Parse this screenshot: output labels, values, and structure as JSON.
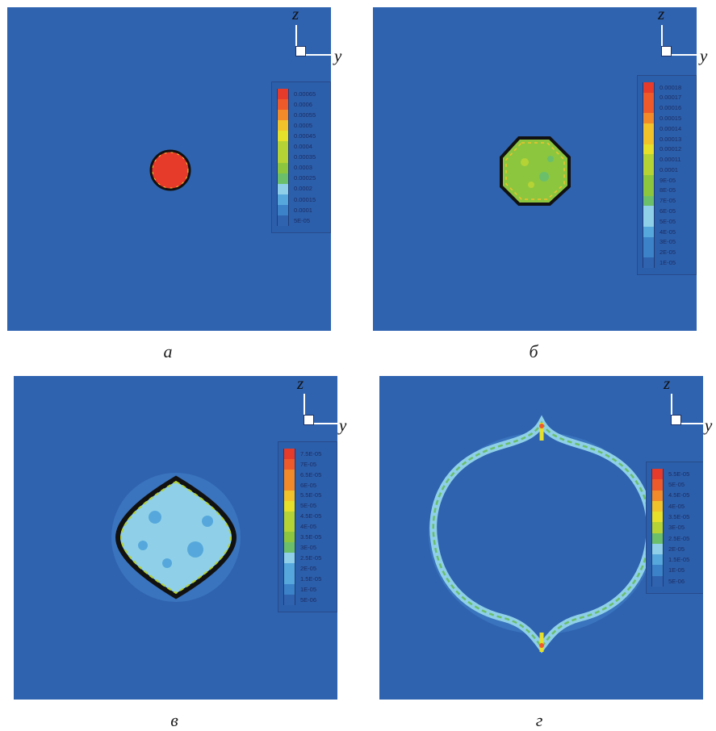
{
  "figure": {
    "panels": [
      {
        "id": "a",
        "caption": "а",
        "axis": {
          "vertical": "z",
          "horizontal": "y"
        },
        "legend": [
          "0.00065",
          "0.0006",
          "0.00055",
          "0.0005",
          "0.00045",
          "0.0004",
          "0.00035",
          "0.0003",
          "0.00025",
          "0.0002",
          "0.00015",
          "0.0001",
          "5E-05"
        ]
      },
      {
        "id": "b",
        "caption": "б",
        "axis": {
          "vertical": "z",
          "horizontal": "y"
        },
        "legend": [
          "0.00018",
          "0.00017",
          "0.00016",
          "0.00015",
          "0.00014",
          "0.00013",
          "0.00012",
          "0.00011",
          "0.0001",
          "9E-05",
          "8E-05",
          "7E-05",
          "6E-05",
          "5E-05",
          "4E-05",
          "3E-05",
          "2E-05",
          "1E-05"
        ]
      },
      {
        "id": "c",
        "caption": "в",
        "axis": {
          "vertical": "z",
          "horizontal": "y"
        },
        "legend": [
          "7.5E-05",
          "7E-05",
          "6.5E-05",
          "6E-05",
          "5.5E-05",
          "5E-05",
          "4.5E-05",
          "4E-05",
          "3.5E-05",
          "3E-05",
          "2.5E-05",
          "2E-05",
          "1.5E-05",
          "1E-05",
          "5E-06"
        ]
      },
      {
        "id": "d",
        "caption": "г",
        "axis": {
          "vertical": "z",
          "horizontal": "y"
        },
        "legend": [
          "5.5E-05",
          "5E-05",
          "4.5E-05",
          "4E-05",
          "3.5E-05",
          "3E-05",
          "2.5E-05",
          "2E-05",
          "1.5E-05",
          "1E-05",
          "5E-06"
        ]
      }
    ],
    "colors": {
      "background": "#2f63b0",
      "scale_low_to_high": [
        "#2f63b0",
        "#3b82c8",
        "#56a8dc",
        "#8fd0e8",
        "#6bbf6b",
        "#8cc63f",
        "#b5d334",
        "#e6e02a",
        "#f2c22a",
        "#f28a2a",
        "#ee5a2a",
        "#e63a2a"
      ]
    }
  }
}
